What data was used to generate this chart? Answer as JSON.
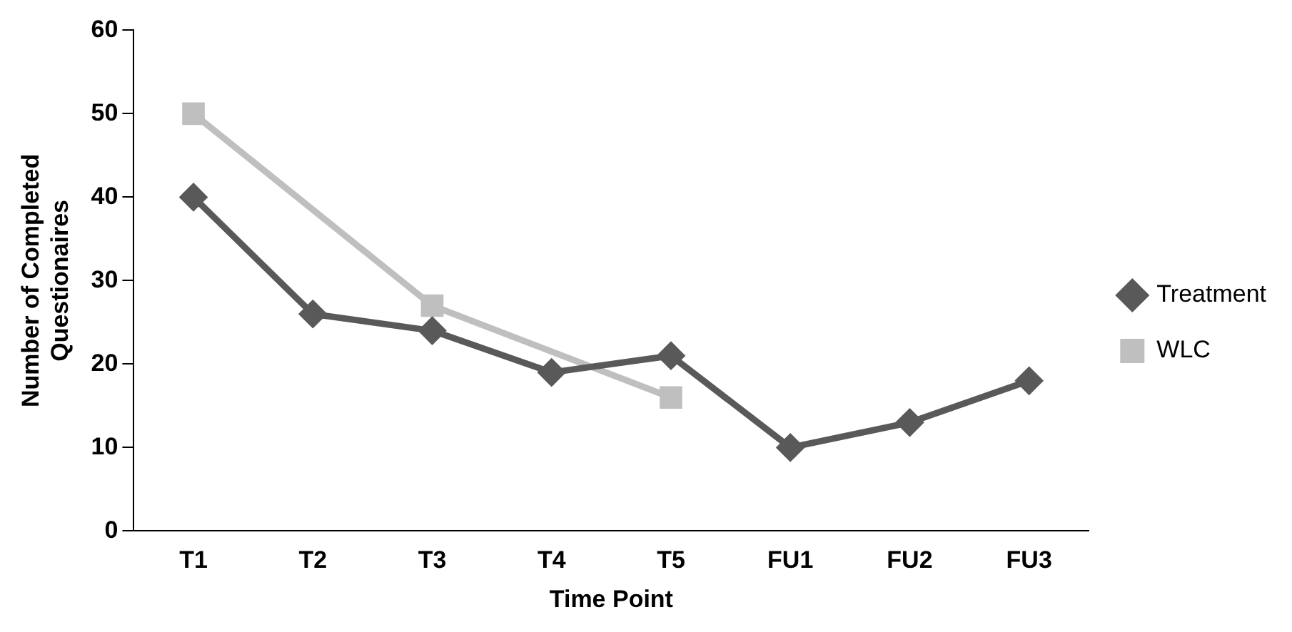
{
  "chart_data": {
    "type": "line",
    "xlabel": "Time Point",
    "ylabel": "Number of Completed Questionaires",
    "categories": [
      "T1",
      "T2",
      "T3",
      "T4",
      "T5",
      "FU1",
      "FU2",
      "FU3"
    ],
    "series": [
      {
        "name": "Treatment",
        "color": "#595959",
        "marker": "diamond",
        "values": [
          40,
          26,
          24,
          19,
          21,
          10,
          13,
          18
        ]
      },
      {
        "name": "WLC",
        "color": "#bfbfbf",
        "marker": "square",
        "values": [
          50,
          null,
          27,
          null,
          16,
          null,
          null,
          null
        ]
      }
    ],
    "ylim": [
      0,
      60
    ],
    "yticks": [
      0,
      10,
      20,
      30,
      40,
      50,
      60
    ],
    "grid": false,
    "legend": "right"
  }
}
